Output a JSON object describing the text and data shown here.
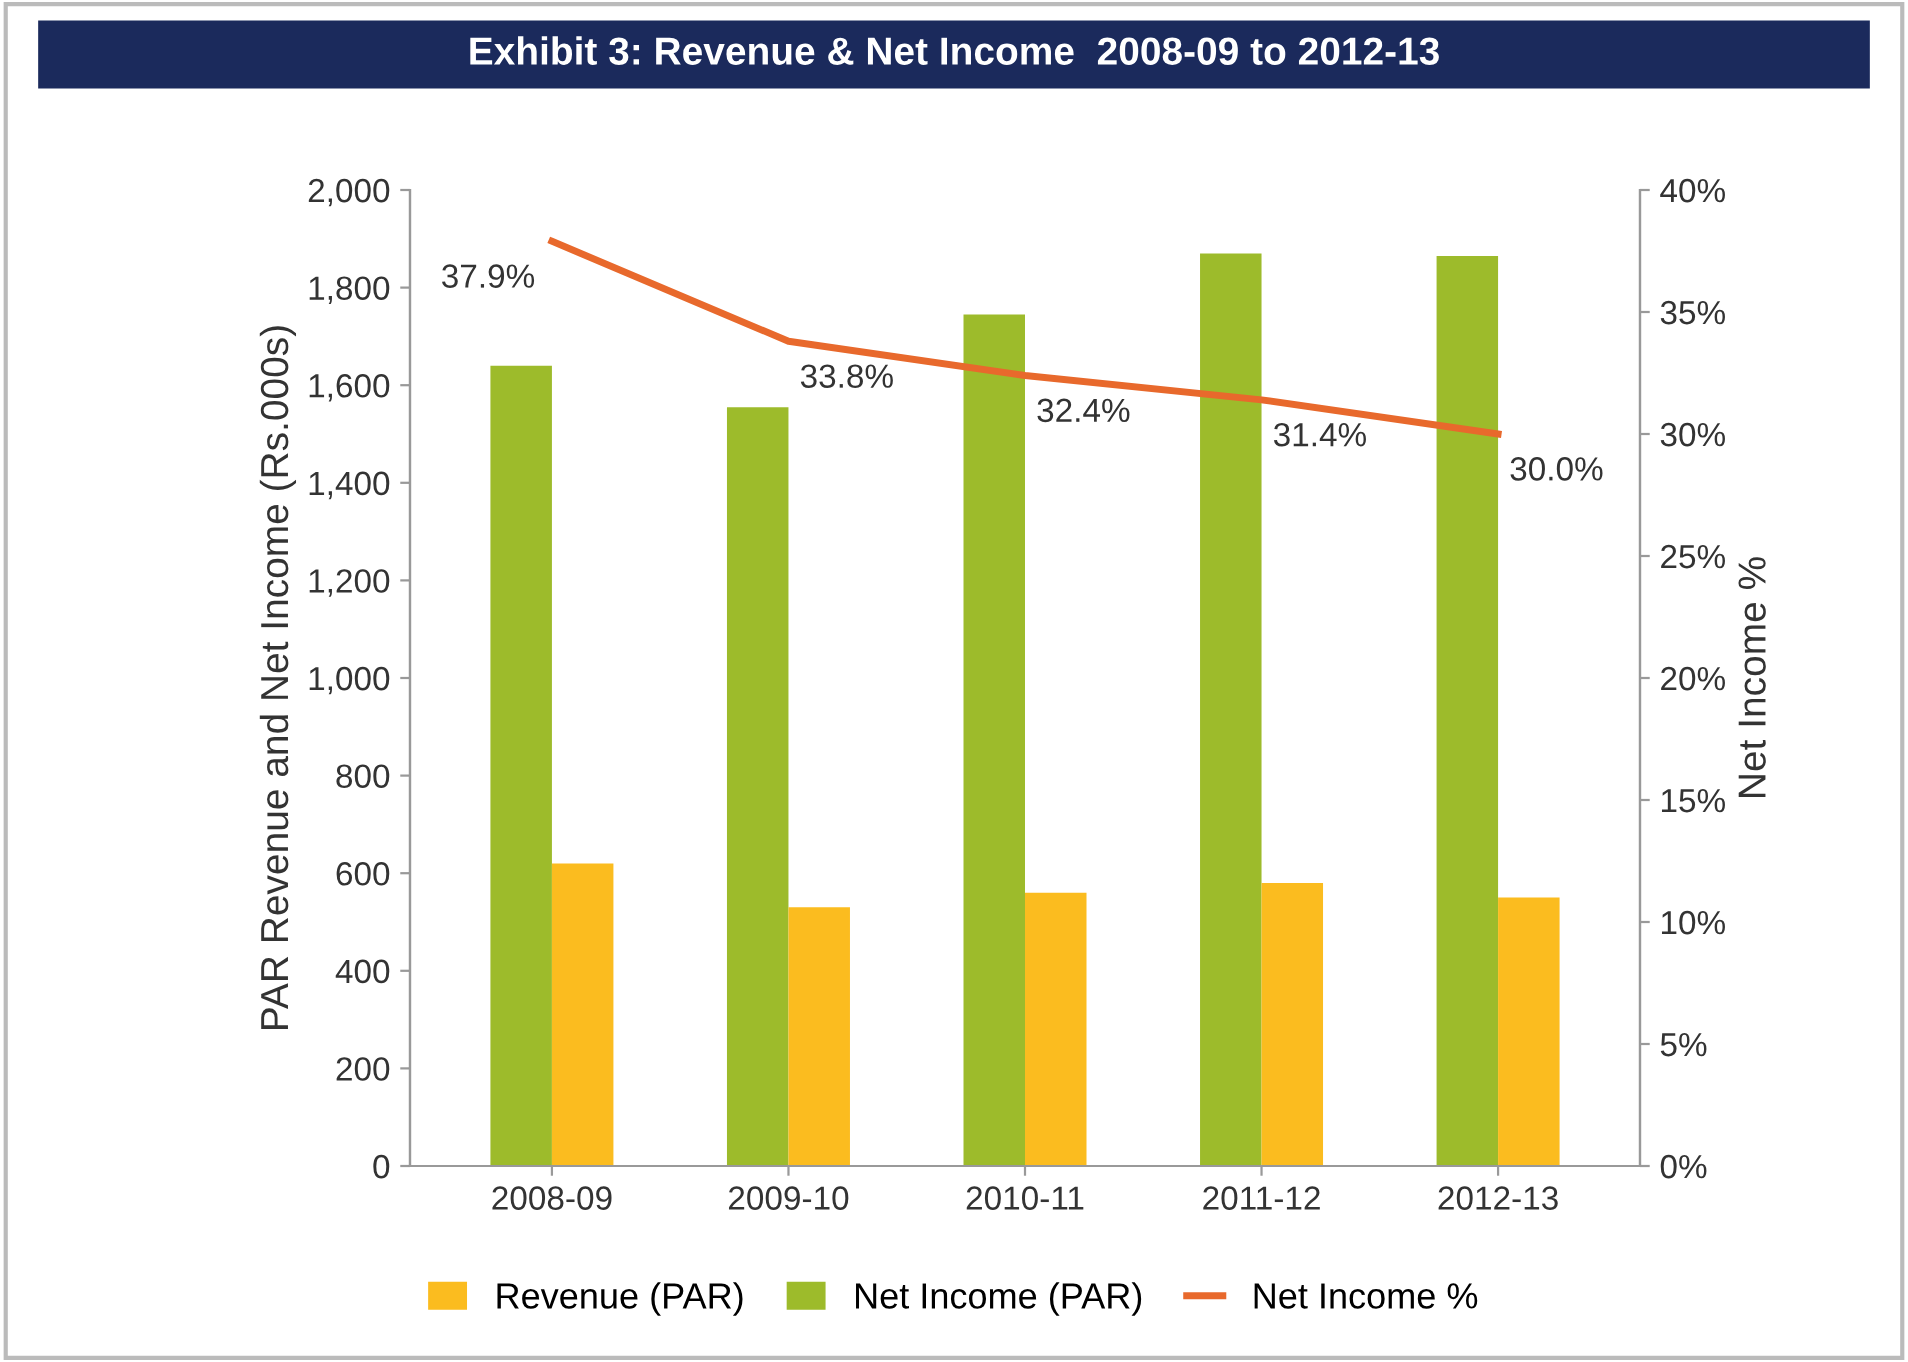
{
  "chart_data": {
    "type": "bar",
    "title": "Exhibit 3: Revenue & Net Income  2008-09 to 2012-13",
    "ylabel": "PAR Revenue and Net Income (Rs.000s)",
    "y2label": "Net Income %",
    "categories": [
      "2008-09",
      "2009-10",
      "2010-11",
      "2011-12",
      "2012-13"
    ],
    "series": [
      {
        "name": "Net Income (PAR)",
        "color": "#9dbb2b",
        "values": [
          1640,
          1555,
          1745,
          1870,
          1865
        ]
      },
      {
        "name": "Revenue (PAR)",
        "color": "#fbbc1f",
        "values": [
          620,
          530,
          560,
          580,
          550
        ]
      },
      {
        "name": "Net Income %",
        "type": "line",
        "axis": "y2",
        "color": "#e8692c",
        "values": [
          37.9,
          33.8,
          32.4,
          31.4,
          30.0
        ],
        "value_labels": [
          "37.9%",
          "33.8%",
          "32.4%",
          "31.4%",
          "30.0%"
        ]
      }
    ],
    "ylim": [
      0,
      2000
    ],
    "yticks": [
      {
        "value": 0,
        "label": "0"
      },
      {
        "value": 200,
        "label": "200"
      },
      {
        "value": 400,
        "label": "400"
      },
      {
        "value": 600,
        "label": "600"
      },
      {
        "value": 800,
        "label": "800"
      },
      {
        "value": 1000,
        "label": "1,000"
      },
      {
        "value": 1200,
        "label": "1,200"
      },
      {
        "value": 1400,
        "label": "1,400"
      },
      {
        "value": 1600,
        "label": "1,600"
      },
      {
        "value": 1800,
        "label": "1,800"
      },
      {
        "value": 2000,
        "label": "2,000"
      }
    ],
    "y2lim": [
      0,
      40
    ],
    "y2ticks": [
      {
        "value": 0,
        "label": "0%"
      },
      {
        "value": 5,
        "label": "5%"
      },
      {
        "value": 10,
        "label": "10%"
      },
      {
        "value": 15,
        "label": "15%"
      },
      {
        "value": 20,
        "label": "20%"
      },
      {
        "value": 25,
        "label": "25%"
      },
      {
        "value": 30,
        "label": "30%"
      },
      {
        "value": 35,
        "label": "35%"
      },
      {
        "value": 40,
        "label": "40%"
      }
    ],
    "grid": false,
    "legend": "bottom"
  }
}
